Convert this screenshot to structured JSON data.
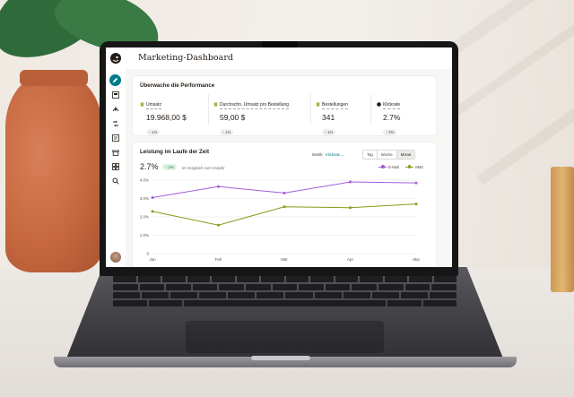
{
  "app": {
    "title": "Marketing-Dashboard"
  },
  "nav": {
    "items": [
      "pencil-icon",
      "campaign-icon",
      "audience-icon",
      "automation-icon",
      "content-icon",
      "website-icon",
      "integrations-icon",
      "search-icon"
    ]
  },
  "performance": {
    "heading": "Überwache die Performance",
    "kpis": [
      {
        "label": "Umsatz",
        "value": "19.968,00 $",
        "change": "1%"
      },
      {
        "label": "Durchschn. Umsatz pro Bestellung",
        "value": "59,00 $",
        "change": "1%"
      },
      {
        "label": "Bestellungen",
        "value": "341",
        "change": "1%"
      },
      {
        "label": "Klickrate",
        "value": "2.7%",
        "change": "2%"
      }
    ]
  },
  "over_time": {
    "heading": "Leistung im Laufe der Zeit",
    "rate": "2.7%",
    "rate_change": "2%",
    "rate_caption": "im Vergleich zum Vorjahr",
    "metric_label": "Metrik:",
    "metric_value": "Klickrate",
    "ranges": [
      "Tag",
      "Woche",
      "Monat"
    ],
    "legend": [
      {
        "name": "E-Mail",
        "color": "#a25ddc"
      },
      {
        "name": "SMS",
        "color": "#8a9a1c"
      }
    ]
  },
  "chart_data": {
    "type": "line",
    "categories": [
      "Jan",
      "Feb",
      "Mär",
      "Apr",
      "Mai"
    ],
    "series": [
      {
        "name": "E-Mail",
        "values": [
          3.05,
          3.65,
          3.3,
          3.9,
          3.85
        ],
        "color": "#a25ddc"
      },
      {
        "name": "SMS",
        "values": [
          2.3,
          1.55,
          2.55,
          2.5,
          2.7
        ],
        "color": "#8a9a1c"
      }
    ],
    "yticks": [
      "0",
      "1.0%",
      "2.0%",
      "3.0%",
      "4.0%"
    ],
    "ylim": [
      0,
      4
    ],
    "grid": true,
    "legend_position": "top-right"
  }
}
